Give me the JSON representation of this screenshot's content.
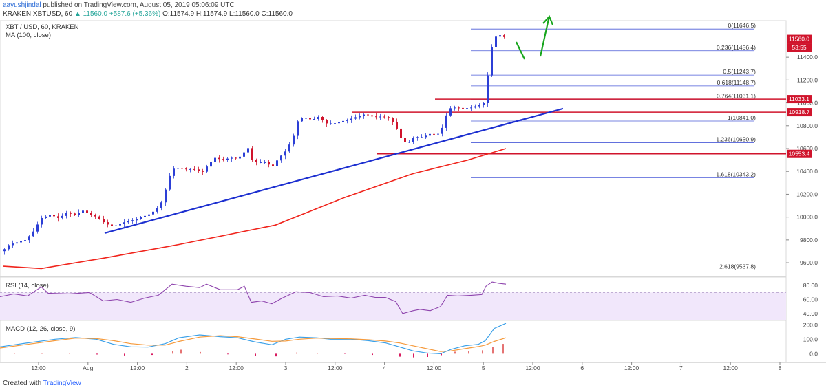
{
  "header": {
    "user": "aayushjindal",
    "published": "published on TradingView.com, August 05, 2019 05:06:09 UTC",
    "symbol_line": "KRAKEN:XBTUSD, 60",
    "change": "▲ 11560.0 +587.6 (+5.36%)",
    "ohlc": "O:11574.9 H:11574.9 L:11560.0 C:11560.0"
  },
  "legend": {
    "main_title": "XBT / USD, 60, KRAKEN",
    "ma_label": "MA (100, close)",
    "rsi_label": "RSI (14, close)",
    "macd_label": "MACD (12, 26, close, 9)"
  },
  "footer": {
    "created_with": "Created with",
    "brand": "TradingView"
  },
  "colors": {
    "up": "#2c3fd6",
    "down": "#d0142c",
    "ma": "#f0241c",
    "trendline": "#1c2fd0",
    "arrow": "#17a51c",
    "rsi": "#8e44ad",
    "macd": "#3aa0e8",
    "signal": "#f59a3c"
  },
  "chart_data": [
    {
      "type": "candlestick",
      "title": "XBT / USD, 60, KRAKEN",
      "ylim": [
        9480,
        11720
      ],
      "y_ticks": [
        9600,
        9800,
        10000,
        10200,
        10400,
        10600,
        10800,
        11000,
        11200,
        11400
      ],
      "x_ticks": [
        "12:00",
        "Aug",
        "12:00",
        "2",
        "12:00",
        "3",
        "12:00",
        "4",
        "12:00",
        "5",
        "12:00",
        "6",
        "12:00",
        "7",
        "12:00",
        "8"
      ],
      "price_points": [
        [
          0,
          9690
        ],
        [
          12,
          9760
        ],
        [
          24,
          9780
        ],
        [
          36,
          9800
        ],
        [
          48,
          9880
        ],
        [
          58,
          9990
        ],
        [
          72,
          10020
        ],
        [
          84,
          9990
        ],
        [
          96,
          10040
        ],
        [
          108,
          10020
        ],
        [
          118,
          10060
        ],
        [
          130,
          10020
        ],
        [
          140,
          10000
        ],
        [
          152,
          9940
        ],
        [
          164,
          9920
        ],
        [
          176,
          9950
        ],
        [
          190,
          9970
        ],
        [
          204,
          10000
        ],
        [
          218,
          10030
        ],
        [
          232,
          10110
        ],
        [
          240,
          10260
        ],
        [
          248,
          10420
        ],
        [
          256,
          10430
        ],
        [
          268,
          10420
        ],
        [
          280,
          10420
        ],
        [
          292,
          10390
        ],
        [
          300,
          10450
        ],
        [
          310,
          10520
        ],
        [
          322,
          10500
        ],
        [
          334,
          10520
        ],
        [
          344,
          10510
        ],
        [
          352,
          10560
        ],
        [
          360,
          10610
        ],
        [
          366,
          10480
        ],
        [
          374,
          10480
        ],
        [
          384,
          10480
        ],
        [
          394,
          10440
        ],
        [
          404,
          10520
        ],
        [
          414,
          10580
        ],
        [
          424,
          10690
        ],
        [
          432,
          10860
        ],
        [
          442,
          10870
        ],
        [
          452,
          10850
        ],
        [
          462,
          10880
        ],
        [
          472,
          10820
        ],
        [
          484,
          10820
        ],
        [
          496,
          10840
        ],
        [
          508,
          10860
        ],
        [
          518,
          10880
        ],
        [
          528,
          10900
        ],
        [
          540,
          10880
        ],
        [
          552,
          10880
        ],
        [
          562,
          10870
        ],
        [
          572,
          10820
        ],
        [
          580,
          10700
        ],
        [
          590,
          10640
        ],
        [
          600,
          10700
        ],
        [
          612,
          10700
        ],
        [
          624,
          10730
        ],
        [
          634,
          10720
        ],
        [
          642,
          10790
        ],
        [
          650,
          10950
        ],
        [
          660,
          10960
        ],
        [
          672,
          10950
        ],
        [
          684,
          10960
        ],
        [
          694,
          10980
        ],
        [
          702,
          11000
        ],
        [
          706,
          11180
        ],
        [
          710,
          11420
        ],
        [
          716,
          11560
        ],
        [
          722,
          11600
        ],
        [
          730,
          11580
        ],
        [
          736,
          11560
        ]
      ],
      "series": [
        {
          "name": "MA (100, close)",
          "points": [
            [
              5,
              9570
            ],
            [
              60,
              9550
            ],
            [
              150,
              9640
            ],
            [
              260,
              9760
            ],
            [
              400,
              9930
            ],
            [
              500,
              10170
            ],
            [
              600,
              10380
            ],
            [
              680,
              10500
            ],
            [
              735,
              10600
            ]
          ]
        }
      ],
      "annotations": {
        "trendline": [
          [
            152,
            9860
          ],
          [
            818,
            10950
          ]
        ],
        "horizontal_lines": [
          10918.7,
          10553.4,
          11033.1
        ],
        "fibonacci": [
          {
            "label": "0(11646.5)",
            "value": 11646.5
          },
          {
            "label": "0.236(11456.4)",
            "value": 11456.4
          },
          {
            "label": "0.5(11243.7)",
            "value": 11243.7
          },
          {
            "label": "0.618(11148.7)",
            "value": 11148.7
          },
          {
            "label": "0.764(11031.1)",
            "value": 11031.1
          },
          {
            "label": "1(10841.0)",
            "value": 10841.0
          },
          {
            "label": "1.236(10650.9)",
            "value": 10650.9
          },
          {
            "label": "1.618(10343.2)",
            "value": 10343.2
          },
          {
            "label": "2.618(9537.8)",
            "value": 9537.8
          }
        ],
        "price_tags": [
          {
            "label": "11560.0",
            "value": 11560.0
          },
          {
            "label": "53:55",
            "value": 11485
          },
          {
            "label": "11033.1",
            "value": 11033.1
          },
          {
            "label": "10918.7",
            "value": 10918.7
          },
          {
            "label": "10553.4",
            "value": 10553.4
          }
        ]
      }
    },
    {
      "type": "line",
      "title": "RSI (14, close)",
      "ylim": [
        31,
        92
      ],
      "y_ticks": [
        40.0,
        60.0,
        80.0
      ],
      "band": [
        30,
        70
      ],
      "series": [
        {
          "name": "RSI (14, close)",
          "points": [
            [
              0,
              64
            ],
            [
              20,
              68
            ],
            [
              40,
              65
            ],
            [
              60,
              78
            ],
            [
              70,
              69
            ],
            [
              100,
              68
            ],
            [
              130,
              70
            ],
            [
              150,
              58
            ],
            [
              170,
              60
            ],
            [
              190,
              56
            ],
            [
              210,
              62
            ],
            [
              230,
              66
            ],
            [
              250,
              82
            ],
            [
              270,
              79
            ],
            [
              290,
              77
            ],
            [
              300,
              82
            ],
            [
              320,
              74
            ],
            [
              345,
              74
            ],
            [
              355,
              79
            ],
            [
              365,
              56
            ],
            [
              380,
              58
            ],
            [
              395,
              54
            ],
            [
              410,
              62
            ],
            [
              430,
              71
            ],
            [
              450,
              70
            ],
            [
              470,
              64
            ],
            [
              490,
              65
            ],
            [
              510,
              62
            ],
            [
              530,
              66
            ],
            [
              545,
              63
            ],
            [
              560,
              63
            ],
            [
              575,
              57
            ],
            [
              585,
              40
            ],
            [
              600,
              44
            ],
            [
              610,
              46
            ],
            [
              625,
              44
            ],
            [
              640,
              50
            ],
            [
              650,
              66
            ],
            [
              665,
              65
            ],
            [
              685,
              66
            ],
            [
              700,
              67
            ],
            [
              706,
              79
            ],
            [
              715,
              85
            ],
            [
              725,
              83
            ],
            [
              735,
              82
            ]
          ]
        }
      ]
    },
    {
      "type": "line",
      "title": "MACD (12, 26, close, 9)",
      "ylim": [
        -60,
        230
      ],
      "y_ticks": [
        0.0,
        100.0,
        200.0
      ],
      "series": [
        {
          "name": "MACD",
          "points": [
            [
              0,
              48
            ],
            [
              40,
              75
            ],
            [
              80,
              100
            ],
            [
              110,
              112
            ],
            [
              140,
              100
            ],
            [
              165,
              65
            ],
            [
              190,
              48
            ],
            [
              215,
              46
            ],
            [
              240,
              70
            ],
            [
              260,
              110
            ],
            [
              290,
              130
            ],
            [
              320,
              118
            ],
            [
              345,
              110
            ],
            [
              370,
              82
            ],
            [
              395,
              62
            ],
            [
              415,
              100
            ],
            [
              435,
              115
            ],
            [
              460,
              110
            ],
            [
              480,
              100
            ],
            [
              510,
              100
            ],
            [
              535,
              90
            ],
            [
              560,
              75
            ],
            [
              580,
              48
            ],
            [
              600,
              20
            ],
            [
              620,
              5
            ],
            [
              640,
              0
            ],
            [
              655,
              30
            ],
            [
              675,
              55
            ],
            [
              695,
              65
            ],
            [
              705,
              90
            ],
            [
              718,
              175
            ],
            [
              735,
              210
            ]
          ]
        },
        {
          "name": "Signal",
          "points": [
            [
              0,
              40
            ],
            [
              40,
              65
            ],
            [
              80,
              90
            ],
            [
              110,
              108
            ],
            [
              140,
              105
            ],
            [
              165,
              90
            ],
            [
              190,
              70
            ],
            [
              215,
              60
            ],
            [
              240,
              60
            ],
            [
              260,
              85
            ],
            [
              290,
              115
            ],
            [
              320,
              125
            ],
            [
              345,
              118
            ],
            [
              370,
              102
            ],
            [
              395,
              86
            ],
            [
              415,
              88
            ],
            [
              435,
              100
            ],
            [
              460,
              108
            ],
            [
              480,
              106
            ],
            [
              510,
              103
            ],
            [
              535,
              97
            ],
            [
              560,
              88
            ],
            [
              580,
              75
            ],
            [
              600,
              55
            ],
            [
              620,
              35
            ],
            [
              640,
              15
            ],
            [
              655,
              20
            ],
            [
              675,
              35
            ],
            [
              695,
              50
            ],
            [
              705,
              60
            ],
            [
              718,
              85
            ],
            [
              735,
              110
            ]
          ]
        }
      ],
      "histogram": [
        [
          20,
          5
        ],
        [
          60,
          6
        ],
        [
          100,
          4
        ],
        [
          140,
          -5
        ],
        [
          180,
          -12
        ],
        [
          220,
          -8
        ],
        [
          250,
          20
        ],
        [
          262,
          28
        ],
        [
          290,
          12
        ],
        [
          330,
          -4
        ],
        [
          370,
          -14
        ],
        [
          400,
          -18
        ],
        [
          430,
          8
        ],
        [
          460,
          4
        ],
        [
          500,
          -2
        ],
        [
          540,
          -8
        ],
        [
          580,
          -20
        ],
        [
          600,
          -25
        ],
        [
          620,
          -22
        ],
        [
          640,
          -10
        ],
        [
          660,
          14
        ],
        [
          680,
          18
        ],
        [
          700,
          24
        ],
        [
          715,
          45
        ],
        [
          730,
          68
        ]
      ]
    }
  ]
}
